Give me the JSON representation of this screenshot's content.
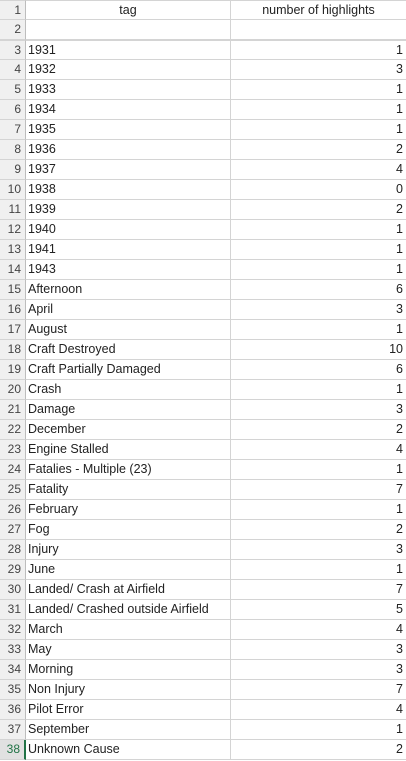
{
  "header": {
    "row_number": "1",
    "col_a": "tag",
    "col_b": "number of highlights"
  },
  "blank_row": {
    "row_number": "2"
  },
  "rows": [
    {
      "n": "3",
      "tag": "1931",
      "count": "1"
    },
    {
      "n": "4",
      "tag": "1932",
      "count": "3"
    },
    {
      "n": "5",
      "tag": "1933",
      "count": "1"
    },
    {
      "n": "6",
      "tag": "1934",
      "count": "1"
    },
    {
      "n": "7",
      "tag": "1935",
      "count": "1"
    },
    {
      "n": "8",
      "tag": "1936",
      "count": "2"
    },
    {
      "n": "9",
      "tag": "1937",
      "count": "4"
    },
    {
      "n": "10",
      "tag": "1938",
      "count": "0"
    },
    {
      "n": "11",
      "tag": "1939",
      "count": "2"
    },
    {
      "n": "12",
      "tag": "1940",
      "count": "1"
    },
    {
      "n": "13",
      "tag": "1941",
      "count": "1"
    },
    {
      "n": "14",
      "tag": "1943",
      "count": "1"
    },
    {
      "n": "15",
      "tag": "Afternoon",
      "count": "6"
    },
    {
      "n": "16",
      "tag": "April",
      "count": "3"
    },
    {
      "n": "17",
      "tag": "August",
      "count": "1"
    },
    {
      "n": "18",
      "tag": "Craft Destroyed",
      "count": "10"
    },
    {
      "n": "19",
      "tag": "Craft Partially Damaged",
      "count": "6"
    },
    {
      "n": "20",
      "tag": "Crash",
      "count": "1"
    },
    {
      "n": "21",
      "tag": "Damage",
      "count": "3"
    },
    {
      "n": "22",
      "tag": "December",
      "count": "2"
    },
    {
      "n": "23",
      "tag": "Engine Stalled",
      "count": "4"
    },
    {
      "n": "24",
      "tag": "Fatalies - Multiple (23)",
      "count": "1"
    },
    {
      "n": "25",
      "tag": "Fatality",
      "count": "7"
    },
    {
      "n": "26",
      "tag": "February",
      "count": "1"
    },
    {
      "n": "27",
      "tag": "Fog",
      "count": "2"
    },
    {
      "n": "28",
      "tag": "Injury",
      "count": "3"
    },
    {
      "n": "29",
      "tag": "June",
      "count": "1"
    },
    {
      "n": "30",
      "tag": "Landed/ Crash at Airfield",
      "count": "7"
    },
    {
      "n": "31",
      "tag": "Landed/ Crashed outside Airfield",
      "count": "5"
    },
    {
      "n": "32",
      "tag": "March",
      "count": "4"
    },
    {
      "n": "33",
      "tag": "May",
      "count": "3"
    },
    {
      "n": "34",
      "tag": "Morning",
      "count": "3"
    },
    {
      "n": "35",
      "tag": "Non Injury",
      "count": "7"
    },
    {
      "n": "36",
      "tag": "Pilot Error",
      "count": "4"
    },
    {
      "n": "37",
      "tag": "September",
      "count": "1"
    },
    {
      "n": "38",
      "tag": "Unknown Cause",
      "count": "2"
    }
  ],
  "selected_row": "38",
  "colors": {
    "accent": "#217346",
    "grid": "#d4d4d4",
    "header_bg": "#f0f0f0"
  }
}
